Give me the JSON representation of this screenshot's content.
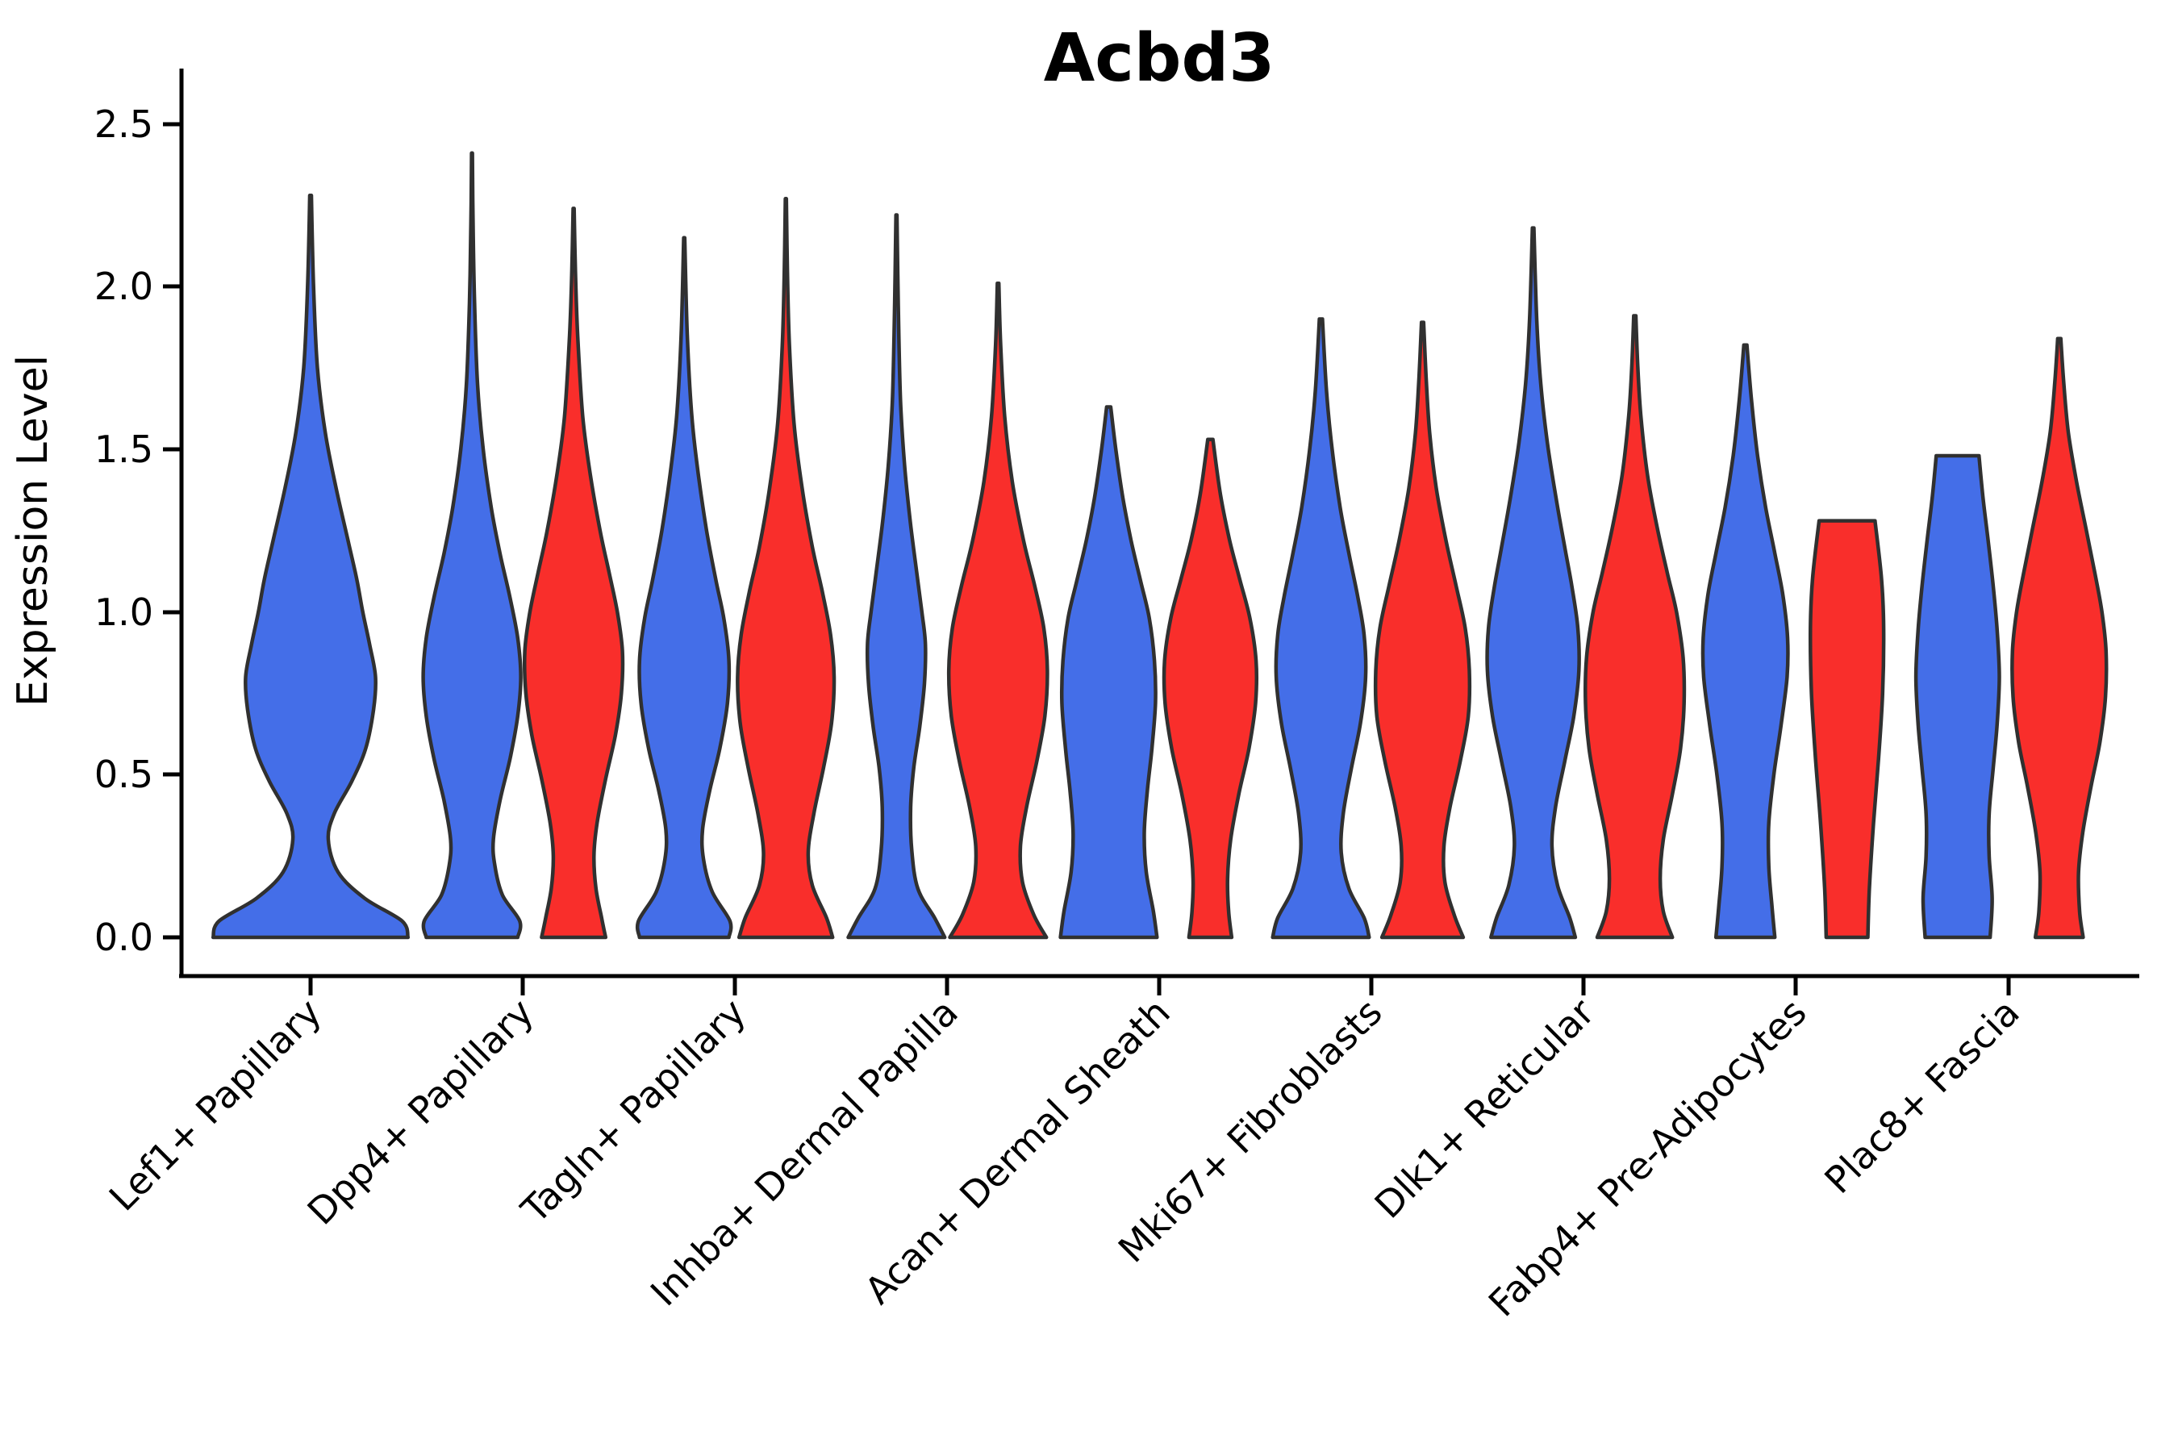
{
  "title": "Acbd3",
  "y_axis": {
    "label": "Expression Level",
    "tick_labels": [
      "0.0",
      "0.5",
      "1.0",
      "1.5",
      "2.0",
      "2.5"
    ]
  },
  "chart_data": {
    "type": "violin",
    "title": "Acbd3",
    "xlabel": "",
    "ylabel": "Expression Level",
    "ylim": [
      0,
      2.5
    ],
    "yticks": [
      0.0,
      0.5,
      1.0,
      1.5,
      2.0,
      2.5
    ],
    "grid": false,
    "legend": "none",
    "categories": [
      "Lef1+ Papillary",
      "Dpp4+ Papillary",
      "Tagln+ Papillary",
      "Inhba+ Dermal Papilla",
      "Acan+ Dermal Sheath",
      "Mki67+ Fibroblasts",
      "Dlk1+ Reticular",
      "Fabp4+ Pre-Adipocytes",
      "Plac8+ Fascia"
    ],
    "groups": [
      {
        "name": "blue",
        "color": "#446EE8"
      },
      {
        "name": "red",
        "color": "#F92E2B"
      }
    ],
    "outline_color": "#303030",
    "violins": [
      {
        "cat": 0,
        "group": "blue",
        "single": true,
        "max": 2.28,
        "flat_top": false,
        "profile": [
          [
            0,
            0.99
          ],
          [
            0.05,
            0.93
          ],
          [
            0.12,
            0.55
          ],
          [
            0.2,
            0.28
          ],
          [
            0.3,
            0.18
          ],
          [
            0.38,
            0.24
          ],
          [
            0.48,
            0.42
          ],
          [
            0.58,
            0.56
          ],
          [
            0.7,
            0.64
          ],
          [
            0.8,
            0.66
          ],
          [
            0.9,
            0.6
          ],
          [
            1.0,
            0.53
          ],
          [
            1.1,
            0.47
          ],
          [
            1.22,
            0.38
          ],
          [
            1.38,
            0.26
          ],
          [
            1.55,
            0.15
          ],
          [
            1.75,
            0.07
          ],
          [
            2.0,
            0.03
          ],
          [
            2.28,
            0.008
          ]
        ]
      },
      {
        "cat": 1,
        "group": "blue",
        "single": false,
        "max": 2.41,
        "flat_top": false,
        "profile": [
          [
            0,
            0.9
          ],
          [
            0.05,
            0.94
          ],
          [
            0.13,
            0.6
          ],
          [
            0.22,
            0.45
          ],
          [
            0.3,
            0.42
          ],
          [
            0.42,
            0.55
          ],
          [
            0.55,
            0.75
          ],
          [
            0.68,
            0.9
          ],
          [
            0.8,
            0.96
          ],
          [
            0.92,
            0.9
          ],
          [
            1.05,
            0.74
          ],
          [
            1.18,
            0.55
          ],
          [
            1.32,
            0.38
          ],
          [
            1.5,
            0.22
          ],
          [
            1.7,
            0.11
          ],
          [
            1.95,
            0.05
          ],
          [
            2.2,
            0.02
          ],
          [
            2.41,
            0.008
          ]
        ]
      },
      {
        "cat": 1,
        "group": "red",
        "single": false,
        "max": 2.24,
        "flat_top": false,
        "profile": [
          [
            0,
            0.63
          ],
          [
            0.06,
            0.55
          ],
          [
            0.15,
            0.44
          ],
          [
            0.25,
            0.4
          ],
          [
            0.35,
            0.46
          ],
          [
            0.48,
            0.62
          ],
          [
            0.62,
            0.82
          ],
          [
            0.75,
            0.94
          ],
          [
            0.88,
            0.96
          ],
          [
            1.0,
            0.86
          ],
          [
            1.12,
            0.7
          ],
          [
            1.25,
            0.52
          ],
          [
            1.42,
            0.33
          ],
          [
            1.6,
            0.18
          ],
          [
            1.85,
            0.08
          ],
          [
            2.05,
            0.035
          ],
          [
            2.24,
            0.01
          ]
        ]
      },
      {
        "cat": 2,
        "group": "blue",
        "single": false,
        "max": 2.15,
        "flat_top": false,
        "profile": [
          [
            0,
            0.88
          ],
          [
            0.05,
            0.9
          ],
          [
            0.14,
            0.55
          ],
          [
            0.24,
            0.38
          ],
          [
            0.33,
            0.36
          ],
          [
            0.45,
            0.5
          ],
          [
            0.58,
            0.7
          ],
          [
            0.72,
            0.85
          ],
          [
            0.85,
            0.88
          ],
          [
            0.98,
            0.78
          ],
          [
            1.1,
            0.62
          ],
          [
            1.25,
            0.44
          ],
          [
            1.42,
            0.28
          ],
          [
            1.6,
            0.15
          ],
          [
            1.85,
            0.06
          ],
          [
            2.15,
            0.01
          ]
        ]
      },
      {
        "cat": 2,
        "group": "red",
        "single": false,
        "max": 2.27,
        "flat_top": false,
        "profile": [
          [
            0,
            0.92
          ],
          [
            0.06,
            0.8
          ],
          [
            0.16,
            0.52
          ],
          [
            0.26,
            0.44
          ],
          [
            0.38,
            0.55
          ],
          [
            0.52,
            0.74
          ],
          [
            0.66,
            0.9
          ],
          [
            0.8,
            0.95
          ],
          [
            0.93,
            0.88
          ],
          [
            1.06,
            0.72
          ],
          [
            1.2,
            0.52
          ],
          [
            1.38,
            0.32
          ],
          [
            1.58,
            0.16
          ],
          [
            1.82,
            0.07
          ],
          [
            2.05,
            0.03
          ],
          [
            2.27,
            0.01
          ]
        ]
      },
      {
        "cat": 3,
        "group": "blue",
        "single": false,
        "max": 2.22,
        "flat_top": false,
        "profile": [
          [
            0,
            0.95
          ],
          [
            0.06,
            0.75
          ],
          [
            0.15,
            0.42
          ],
          [
            0.27,
            0.3
          ],
          [
            0.4,
            0.28
          ],
          [
            0.52,
            0.34
          ],
          [
            0.65,
            0.46
          ],
          [
            0.78,
            0.55
          ],
          [
            0.9,
            0.57
          ],
          [
            1.0,
            0.5
          ],
          [
            1.12,
            0.4
          ],
          [
            1.28,
            0.27
          ],
          [
            1.45,
            0.16
          ],
          [
            1.65,
            0.08
          ],
          [
            1.95,
            0.035
          ],
          [
            2.22,
            0.01
          ]
        ]
      },
      {
        "cat": 3,
        "group": "red",
        "single": false,
        "max": 2.01,
        "flat_top": false,
        "profile": [
          [
            0,
            0.95
          ],
          [
            0.07,
            0.7
          ],
          [
            0.17,
            0.48
          ],
          [
            0.28,
            0.44
          ],
          [
            0.4,
            0.56
          ],
          [
            0.54,
            0.76
          ],
          [
            0.68,
            0.92
          ],
          [
            0.82,
            0.97
          ],
          [
            0.95,
            0.9
          ],
          [
            1.08,
            0.72
          ],
          [
            1.22,
            0.5
          ],
          [
            1.4,
            0.28
          ],
          [
            1.6,
            0.13
          ],
          [
            1.82,
            0.05
          ],
          [
            2.01,
            0.015
          ]
        ]
      },
      {
        "cat": 4,
        "group": "blue",
        "single": false,
        "max": 1.63,
        "flat_top": false,
        "profile": [
          [
            0,
            0.95
          ],
          [
            0.08,
            0.88
          ],
          [
            0.2,
            0.74
          ],
          [
            0.32,
            0.7
          ],
          [
            0.45,
            0.76
          ],
          [
            0.58,
            0.85
          ],
          [
            0.72,
            0.92
          ],
          [
            0.85,
            0.9
          ],
          [
            0.98,
            0.8
          ],
          [
            1.1,
            0.62
          ],
          [
            1.22,
            0.44
          ],
          [
            1.35,
            0.28
          ],
          [
            1.5,
            0.14
          ],
          [
            1.63,
            0.04
          ]
        ]
      },
      {
        "cat": 4,
        "group": "red",
        "single": false,
        "max": 1.53,
        "flat_top": false,
        "profile": [
          [
            0,
            0.42
          ],
          [
            0.08,
            0.36
          ],
          [
            0.18,
            0.34
          ],
          [
            0.3,
            0.4
          ],
          [
            0.44,
            0.56
          ],
          [
            0.58,
            0.76
          ],
          [
            0.72,
            0.89
          ],
          [
            0.85,
            0.9
          ],
          [
            0.98,
            0.78
          ],
          [
            1.1,
            0.58
          ],
          [
            1.22,
            0.38
          ],
          [
            1.36,
            0.2
          ],
          [
            1.53,
            0.05
          ]
        ]
      },
      {
        "cat": 5,
        "group": "blue",
        "single": false,
        "max": 1.9,
        "flat_top": false,
        "profile": [
          [
            0,
            0.95
          ],
          [
            0.06,
            0.85
          ],
          [
            0.15,
            0.55
          ],
          [
            0.26,
            0.4
          ],
          [
            0.38,
            0.44
          ],
          [
            0.52,
            0.6
          ],
          [
            0.66,
            0.78
          ],
          [
            0.8,
            0.88
          ],
          [
            0.93,
            0.85
          ],
          [
            1.05,
            0.72
          ],
          [
            1.18,
            0.55
          ],
          [
            1.32,
            0.38
          ],
          [
            1.5,
            0.22
          ],
          [
            1.68,
            0.11
          ],
          [
            1.9,
            0.03
          ]
        ]
      },
      {
        "cat": 5,
        "group": "red",
        "single": false,
        "max": 1.89,
        "flat_top": false,
        "profile": [
          [
            0,
            0.8
          ],
          [
            0.07,
            0.62
          ],
          [
            0.17,
            0.44
          ],
          [
            0.28,
            0.42
          ],
          [
            0.4,
            0.54
          ],
          [
            0.54,
            0.74
          ],
          [
            0.68,
            0.9
          ],
          [
            0.82,
            0.92
          ],
          [
            0.95,
            0.84
          ],
          [
            1.08,
            0.66
          ],
          [
            1.22,
            0.46
          ],
          [
            1.38,
            0.27
          ],
          [
            1.55,
            0.14
          ],
          [
            1.72,
            0.07
          ],
          [
            1.89,
            0.02
          ]
        ]
      },
      {
        "cat": 6,
        "group": "blue",
        "single": false,
        "max": 2.18,
        "flat_top": false,
        "profile": [
          [
            0,
            0.83
          ],
          [
            0.06,
            0.72
          ],
          [
            0.16,
            0.48
          ],
          [
            0.28,
            0.37
          ],
          [
            0.4,
            0.44
          ],
          [
            0.54,
            0.62
          ],
          [
            0.68,
            0.8
          ],
          [
            0.82,
            0.9
          ],
          [
            0.95,
            0.88
          ],
          [
            1.08,
            0.76
          ],
          [
            1.2,
            0.62
          ],
          [
            1.35,
            0.45
          ],
          [
            1.52,
            0.28
          ],
          [
            1.7,
            0.15
          ],
          [
            1.9,
            0.07
          ],
          [
            2.18,
            0.015
          ]
        ]
      },
      {
        "cat": 6,
        "group": "red",
        "single": false,
        "max": 1.91,
        "flat_top": false,
        "profile": [
          [
            0,
            0.74
          ],
          [
            0.08,
            0.56
          ],
          [
            0.18,
            0.5
          ],
          [
            0.3,
            0.56
          ],
          [
            0.44,
            0.74
          ],
          [
            0.58,
            0.9
          ],
          [
            0.72,
            0.97
          ],
          [
            0.86,
            0.95
          ],
          [
            1.0,
            0.82
          ],
          [
            1.12,
            0.64
          ],
          [
            1.26,
            0.44
          ],
          [
            1.42,
            0.25
          ],
          [
            1.6,
            0.12
          ],
          [
            1.75,
            0.06
          ],
          [
            1.91,
            0.02
          ]
        ]
      },
      {
        "cat": 7,
        "group": "blue",
        "single": false,
        "max": 1.82,
        "flat_top": false,
        "profile": [
          [
            0,
            0.58
          ],
          [
            0.1,
            0.52
          ],
          [
            0.22,
            0.46
          ],
          [
            0.35,
            0.46
          ],
          [
            0.5,
            0.56
          ],
          [
            0.65,
            0.7
          ],
          [
            0.8,
            0.82
          ],
          [
            0.92,
            0.83
          ],
          [
            1.05,
            0.74
          ],
          [
            1.18,
            0.58
          ],
          [
            1.32,
            0.4
          ],
          [
            1.48,
            0.24
          ],
          [
            1.65,
            0.12
          ],
          [
            1.82,
            0.03
          ]
        ]
      },
      {
        "cat": 7,
        "group": "red",
        "single": false,
        "max": 1.28,
        "flat_top": true,
        "profile": [
          [
            0,
            0.41
          ],
          [
            0.15,
            0.44
          ],
          [
            0.35,
            0.52
          ],
          [
            0.55,
            0.62
          ],
          [
            0.75,
            0.7
          ],
          [
            0.95,
            0.72
          ],
          [
            1.1,
            0.68
          ],
          [
            1.28,
            0.55
          ]
        ]
      },
      {
        "cat": 8,
        "group": "blue",
        "single": false,
        "max": 1.48,
        "flat_top": true,
        "profile": [
          [
            0,
            0.64
          ],
          [
            0.12,
            0.68
          ],
          [
            0.25,
            0.62
          ],
          [
            0.38,
            0.62
          ],
          [
            0.52,
            0.7
          ],
          [
            0.66,
            0.78
          ],
          [
            0.8,
            0.82
          ],
          [
            0.94,
            0.78
          ],
          [
            1.08,
            0.7
          ],
          [
            1.22,
            0.6
          ],
          [
            1.35,
            0.5
          ],
          [
            1.48,
            0.42
          ]
        ]
      },
      {
        "cat": 8,
        "group": "red",
        "single": false,
        "max": 1.84,
        "flat_top": false,
        "profile": [
          [
            0,
            0.47
          ],
          [
            0.08,
            0.4
          ],
          [
            0.2,
            0.38
          ],
          [
            0.32,
            0.46
          ],
          [
            0.46,
            0.62
          ],
          [
            0.6,
            0.8
          ],
          [
            0.74,
            0.91
          ],
          [
            0.88,
            0.92
          ],
          [
            1.0,
            0.84
          ],
          [
            1.12,
            0.7
          ],
          [
            1.26,
            0.52
          ],
          [
            1.4,
            0.34
          ],
          [
            1.55,
            0.18
          ],
          [
            1.7,
            0.09
          ],
          [
            1.84,
            0.03
          ]
        ]
      }
    ]
  }
}
